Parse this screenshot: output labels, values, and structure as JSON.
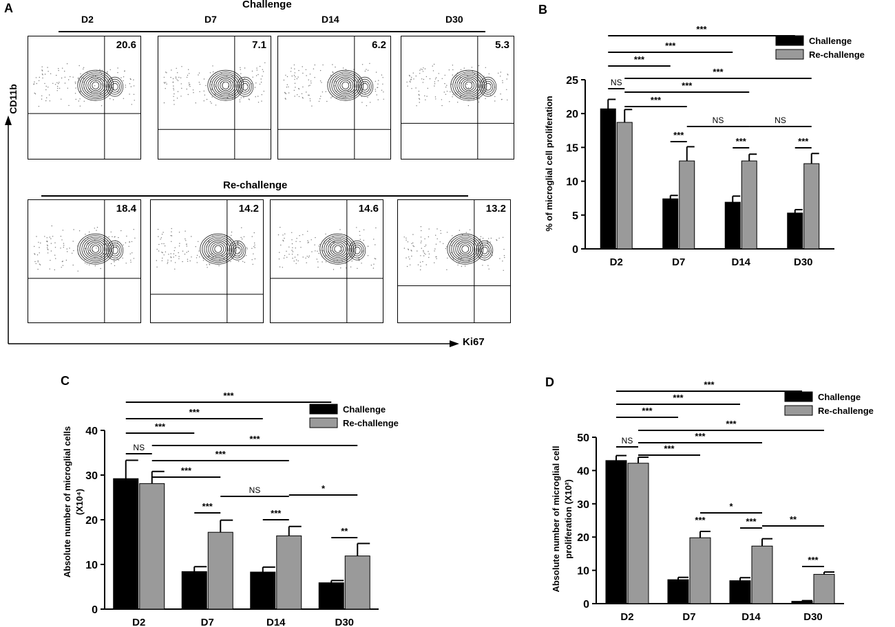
{
  "panel_letters": {
    "a": "A",
    "b": "B",
    "c": "C",
    "d": "D"
  },
  "flow": {
    "challenge_label": "Challenge",
    "rechallenge_label": "Re-challenge",
    "columns": [
      "D2",
      "D7",
      "D14",
      "D30"
    ],
    "challenge_values": [
      "20.6",
      "7.1",
      "6.2",
      "5.3"
    ],
    "rechallenge_values": [
      "18.4",
      "14.2",
      "14.6",
      "13.2"
    ],
    "y_axis_label": "CD11b",
    "x_axis_label": "Ki67"
  },
  "chart_data": [
    {
      "panel": "B",
      "type": "bar",
      "categories": [
        "D2",
        "D7",
        "D14",
        "D30"
      ],
      "series": [
        {
          "name": "Challenge",
          "color": "#000000",
          "values": [
            20.7,
            7.4,
            6.9,
            5.3
          ],
          "errors": [
            1.4,
            0.5,
            0.9,
            0.5
          ]
        },
        {
          "name": "Re-challenge",
          "color": "#9a9a9a",
          "values": [
            18.7,
            13.0,
            13.0,
            12.6
          ],
          "errors": [
            1.9,
            2.1,
            1.0,
            1.5
          ]
        }
      ],
      "ylabel": "% of microglial cell proliferation",
      "yticks": [
        "0",
        "5",
        "10",
        "15",
        "20",
        "25"
      ],
      "ylim": [
        0,
        25
      ],
      "legend": "top-right",
      "annotations": [
        "***",
        "***",
        "***",
        "NS",
        "***",
        "***",
        "***",
        "***",
        "NS",
        "***",
        "NS",
        "***"
      ]
    },
    {
      "panel": "C",
      "type": "bar",
      "categories": [
        "D2",
        "D7",
        "D14",
        "D30"
      ],
      "series": [
        {
          "name": "Challenge",
          "color": "#000000",
          "values": [
            29.2,
            8.4,
            8.3,
            5.9
          ],
          "errors": [
            4.1,
            1.1,
            1.1,
            0.5
          ]
        },
        {
          "name": "Re-challenge",
          "color": "#9a9a9a",
          "values": [
            28.1,
            17.2,
            16.4,
            11.9
          ],
          "errors": [
            2.7,
            2.7,
            2.1,
            2.8
          ]
        }
      ],
      "ylabel": "Absolute number of microglial cells",
      "ylabel2": "(X10⁴)",
      "yticks": [
        "0",
        "10",
        "20",
        "30",
        "40"
      ],
      "ylim": [
        0,
        40
      ],
      "legend": "top-right",
      "annotations": [
        "***",
        "***",
        "***",
        "NS",
        "***",
        "***",
        "***",
        "***",
        "NS",
        "***",
        "*",
        "**"
      ]
    },
    {
      "panel": "D",
      "type": "bar",
      "categories": [
        "D2",
        "D7",
        "D14",
        "D30"
      ],
      "series": [
        {
          "name": "Challenge",
          "color": "#000000",
          "values": [
            43.0,
            7.2,
            6.9,
            0.7
          ],
          "errors": [
            1.5,
            0.7,
            0.9,
            0.2
          ]
        },
        {
          "name": "Re-challenge",
          "color": "#9a9a9a",
          "values": [
            42.2,
            19.8,
            17.3,
            8.8
          ],
          "errors": [
            1.8,
            1.9,
            2.2,
            0.7
          ]
        }
      ],
      "ylabel": "Absolute number of microglial cell",
      "ylabel2": "proliferation (X10²)",
      "yticks": [
        "0",
        "10",
        "20",
        "30",
        "40",
        "50"
      ],
      "ylim": [
        0,
        50
      ],
      "legend": "top-right",
      "annotations": [
        "***",
        "***",
        "***",
        "NS",
        "***",
        "***",
        "***",
        "***",
        "*",
        "***",
        "**",
        "***"
      ]
    }
  ]
}
